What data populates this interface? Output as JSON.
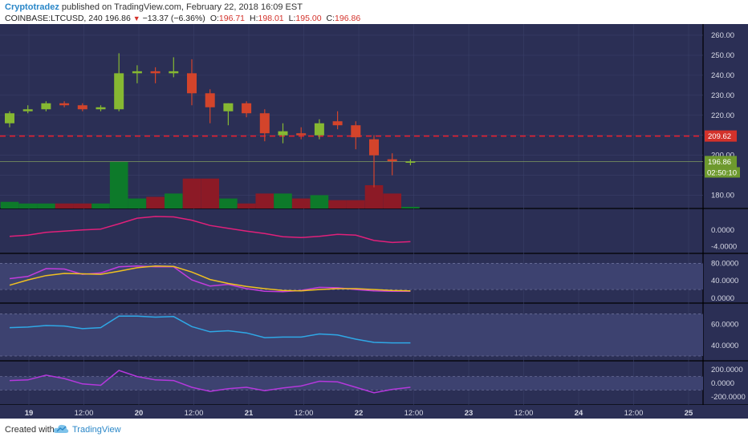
{
  "header": {
    "author": "Cryptotradez",
    "published_text": "published on TradingView.com, February 22, 2018 16:09 EST",
    "symbol": "COINBASE:LTCUSD, 240",
    "last": "196.86",
    "change": "−13.37 (−6.36%)",
    "open_label": "O:",
    "open": "196.71",
    "high_label": "H:",
    "high": "198.01",
    "low_label": "L:",
    "low": "195.00",
    "close_label": "C:",
    "close": "196.86"
  },
  "footer": {
    "created_with": "Created with",
    "brand": "TradingView",
    "logo_icon": "tradingview-cloud-icon"
  },
  "colors": {
    "background": "#2b2f55",
    "bull": "#86b832",
    "bear": "#d3442b",
    "vol_bull": "#0d7a2a",
    "vol_bear": "#8c1a26",
    "macd": "#e0207a",
    "stoch_k": "#c33cdc",
    "stoch_d": "#f0c020",
    "rsi": "#2fa8e6",
    "cci": "#b438dc",
    "hline": "#e02030"
  },
  "price_axis": {
    "ticks": [
      "260.00",
      "250.00",
      "240.00",
      "230.00",
      "220.00",
      "210.00",
      "200.00",
      "190.00",
      "180.00"
    ]
  },
  "macd_axis": {
    "ticks": [
      "0.0000",
      "-4.0000"
    ]
  },
  "stoch_axis": {
    "ticks": [
      "80.0000",
      "40.0000",
      "0.0000"
    ]
  },
  "rsi_axis": {
    "ticks": [
      "60.0000",
      "40.0000"
    ]
  },
  "cci_axis": {
    "ticks": [
      "200.0000",
      "0.0000",
      "-200.0000"
    ]
  },
  "time_axis": {
    "ticks": [
      "19",
      "12:00",
      "20",
      "12:00",
      "21",
      "12:00",
      "22",
      "12:00",
      "23",
      "12:00",
      "24",
      "12:00",
      "25"
    ]
  },
  "labels": {
    "hline_price": "209.62",
    "last_price": "196.86",
    "countdown": "02:50:10"
  },
  "chart_data": {
    "type": "candlestick",
    "symbol": "COINBASE:LTCUSD",
    "interval": "240",
    "price_range": [
      175,
      264
    ],
    "horizontal_line": 209.62,
    "candles": [
      {
        "o": 216,
        "h": 222,
        "l": 214,
        "c": 221
      },
      {
        "o": 222,
        "h": 225,
        "l": 221,
        "c": 223
      },
      {
        "o": 223,
        "h": 227,
        "l": 222,
        "c": 226
      },
      {
        "o": 226,
        "h": 227,
        "l": 224,
        "c": 225
      },
      {
        "o": 225,
        "h": 226,
        "l": 222,
        "c": 223
      },
      {
        "o": 223,
        "h": 225,
        "l": 222,
        "c": 224
      },
      {
        "o": 223,
        "h": 251,
        "l": 222,
        "c": 241
      },
      {
        "o": 241,
        "h": 245,
        "l": 236,
        "c": 242
      },
      {
        "o": 242,
        "h": 244,
        "l": 236,
        "c": 241
      },
      {
        "o": 241,
        "h": 249,
        "l": 239,
        "c": 242
      },
      {
        "o": 241,
        "h": 248,
        "l": 225,
        "c": 231
      },
      {
        "o": 231,
        "h": 233,
        "l": 216,
        "c": 224
      },
      {
        "o": 222,
        "h": 226,
        "l": 215,
        "c": 226
      },
      {
        "o": 226,
        "h": 227,
        "l": 219,
        "c": 221
      },
      {
        "o": 221,
        "h": 223,
        "l": 207,
        "c": 211
      },
      {
        "o": 210,
        "h": 216,
        "l": 206,
        "c": 212
      },
      {
        "o": 211,
        "h": 214,
        "l": 208,
        "c": 210
      },
      {
        "o": 210,
        "h": 218,
        "l": 208,
        "c": 216
      },
      {
        "o": 217,
        "h": 222,
        "l": 213,
        "c": 215
      },
      {
        "o": 215,
        "h": 217,
        "l": 203,
        "c": 209
      },
      {
        "o": 208,
        "h": 210,
        "l": 184,
        "c": 200
      },
      {
        "o": 198,
        "h": 201,
        "l": 190,
        "c": 197
      },
      {
        "o": 196.71,
        "h": 198.01,
        "l": 195.0,
        "c": 196.86
      }
    ],
    "volume": [
      4,
      3,
      3,
      3,
      3,
      3,
      28,
      6,
      7,
      9,
      18,
      18,
      6,
      3,
      9,
      9,
      6,
      8,
      5,
      5,
      14,
      9,
      1
    ],
    "macd": [
      -1.5,
      -1.2,
      -0.5,
      -0.2,
      0.1,
      0.3,
      1.6,
      3.0,
      3.4,
      3.3,
      2.5,
      1.2,
      0.5,
      -0.2,
      -0.8,
      -1.6,
      -1.8,
      -1.5,
      -1.0,
      -1.2,
      -2.5,
      -3.0,
      -2.8
    ],
    "stoch_k": [
      45,
      50,
      68,
      67,
      55,
      58,
      72,
      74,
      72,
      72,
      42,
      28,
      32,
      22,
      16,
      15,
      18,
      25,
      24,
      20,
      17,
      16,
      16
    ],
    "stoch_d": [
      30,
      42,
      52,
      57,
      56,
      55,
      62,
      70,
      74,
      73,
      60,
      43,
      34,
      27,
      22,
      18,
      17,
      20,
      22,
      22,
      20,
      18,
      17
    ],
    "rsi": [
      57,
      57.5,
      59,
      58.5,
      56,
      57,
      68,
      68,
      67,
      67.5,
      58,
      53,
      54,
      52,
      47.5,
      48,
      48,
      51,
      50,
      46,
      43,
      42.5,
      42.5
    ],
    "cci": [
      40,
      50,
      120,
      70,
      -10,
      -30,
      190,
      100,
      50,
      40,
      -60,
      -120,
      -80,
      -60,
      -110,
      -70,
      -40,
      30,
      20,
      -60,
      -140,
      -90,
      -60
    ],
    "time_ticks": [
      "19",
      "12:00",
      "20",
      "12:00",
      "21",
      "12:00",
      "22",
      "12:00",
      "23",
      "12:00",
      "24",
      "12:00",
      "25"
    ]
  }
}
